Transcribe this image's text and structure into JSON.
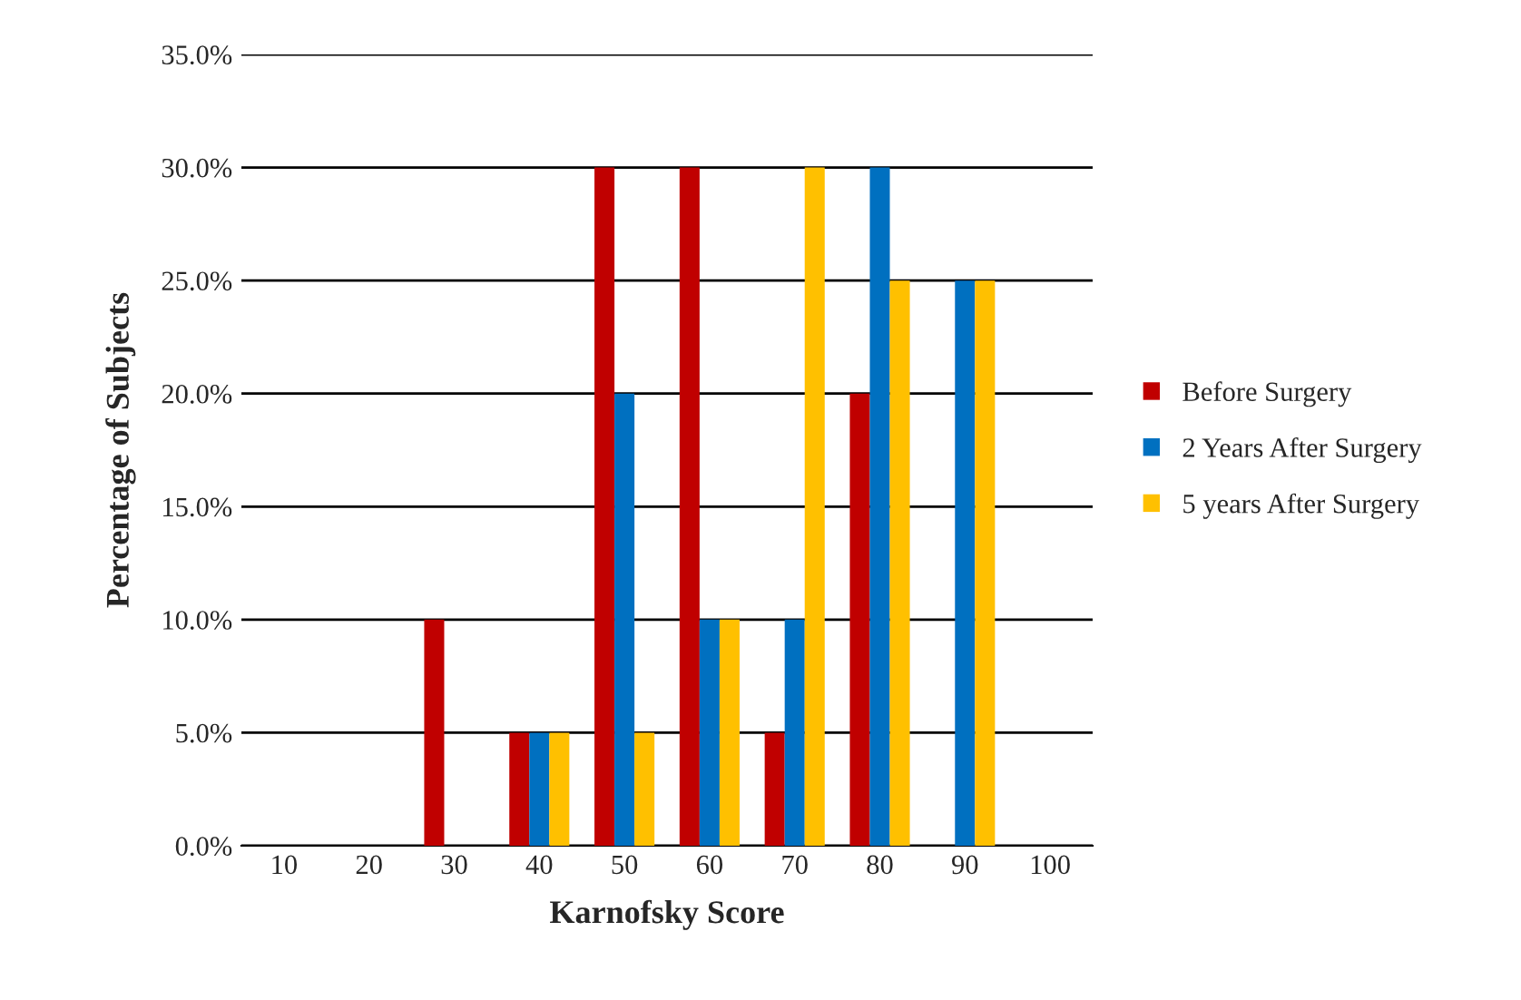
{
  "chart_data": {
    "type": "bar",
    "xlabel": "Karnofsky Score",
    "ylabel": "Percentage of Subjects",
    "categories": [
      "10",
      "20",
      "30",
      "40",
      "50",
      "60",
      "70",
      "80",
      "90",
      "100"
    ],
    "series": [
      {
        "name": "Before Surgery",
        "color": "#c00000",
        "values": [
          0,
          0,
          10,
          5,
          30,
          30,
          5,
          20,
          0,
          0
        ]
      },
      {
        "name": "2 Years After Surgery",
        "color": "#0070c0",
        "values": [
          0,
          0,
          0,
          5,
          20,
          10,
          10,
          30,
          25,
          0
        ]
      },
      {
        "name": "5 years After Surgery",
        "color": "#ffc000",
        "values": [
          0,
          0,
          0,
          5,
          5,
          10,
          30,
          25,
          25,
          0
        ]
      }
    ],
    "ylim": [
      0,
      35
    ],
    "yticks": [
      {
        "value": 0,
        "label": "0.0%"
      },
      {
        "value": 5,
        "label": "5.0%"
      },
      {
        "value": 10,
        "label": "10.0%"
      },
      {
        "value": 15,
        "label": "15.0%"
      },
      {
        "value": 20,
        "label": "20.0%"
      },
      {
        "value": 25,
        "label": "25.0%"
      },
      {
        "value": 30,
        "label": "30.0%"
      },
      {
        "value": 35,
        "label": "35.0%"
      }
    ],
    "grid": "y",
    "legend": "right"
  }
}
